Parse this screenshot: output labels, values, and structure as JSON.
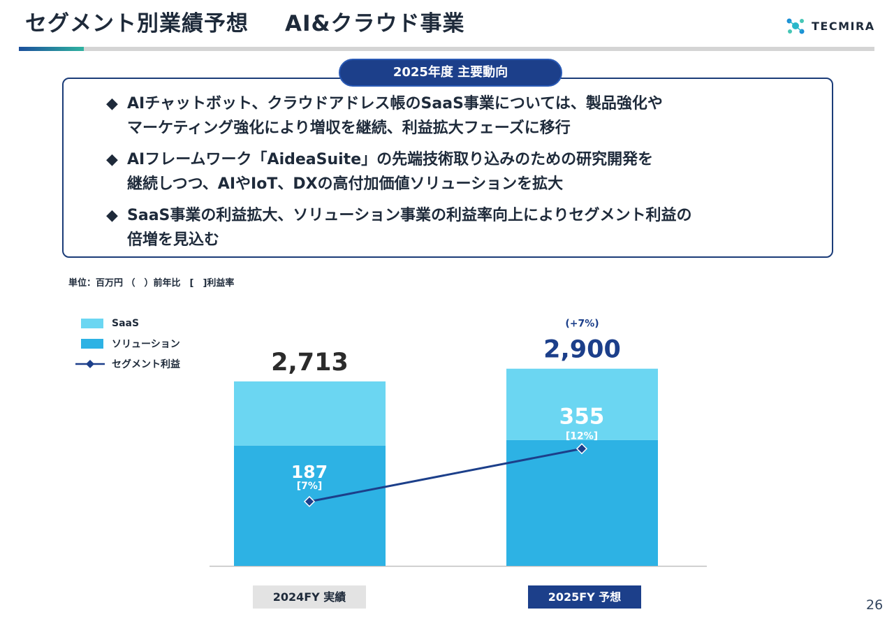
{
  "header": {
    "title": "セグメント別業績予想",
    "segment": "AI&クラウド事業",
    "logo_text": "TECMIRA"
  },
  "trend": {
    "heading": "2025年度 主要動向",
    "bullet_symbol": "◆",
    "bullets": [
      "AIチャットボット、クラウドアドレス帳のSaaS事業については、製品強化や\nマーケティング強化により増収を継続、利益拡大フェーズに移行",
      "AIフレームワーク「AideaSuite」の先端技術取り込みのための研究開発を\n継続しつつ、AIやIoT、DXの高付加価値ソリューションを拡大",
      "SaaS事業の利益拡大、ソリューション事業の利益率向上によりセグメント利益の\n倍増を見込む"
    ]
  },
  "unit_note": "単位：百万円 （　）前年比　[　]利益率",
  "legend": {
    "saas": "SaaS",
    "solution": "ソリューション",
    "profit": "セグメント利益"
  },
  "colors": {
    "saas": "#6bd6f2",
    "solution": "#2db2e4",
    "profit_line": "#1c3f8a",
    "total_2024": "#2b2b2b",
    "total_2025": "#1c3f8a"
  },
  "chart_data": {
    "type": "bar",
    "stacked": true,
    "categories": [
      "2024FY 実績",
      "2025FY 予想"
    ],
    "series": [
      {
        "name": "ソリューション",
        "values": [
          1770,
          1850
        ]
      },
      {
        "name": "SaaS",
        "values": [
          943,
          1050
        ]
      }
    ],
    "totals": [
      2713,
      2900
    ],
    "total_labels": [
      "2,713",
      "2,900"
    ],
    "growth_labels": [
      "",
      "(+7%)"
    ],
    "line_series": {
      "name": "セグメント利益",
      "values": [
        187,
        355
      ],
      "labels": [
        "187",
        "355"
      ],
      "margin_labels": [
        "[7%]",
        "[12%]"
      ]
    },
    "ylim": [
      0,
      3000
    ],
    "grid": false,
    "legend_position": "top-left",
    "title": "",
    "xlabel": "",
    "ylabel": ""
  },
  "page_number": "26"
}
